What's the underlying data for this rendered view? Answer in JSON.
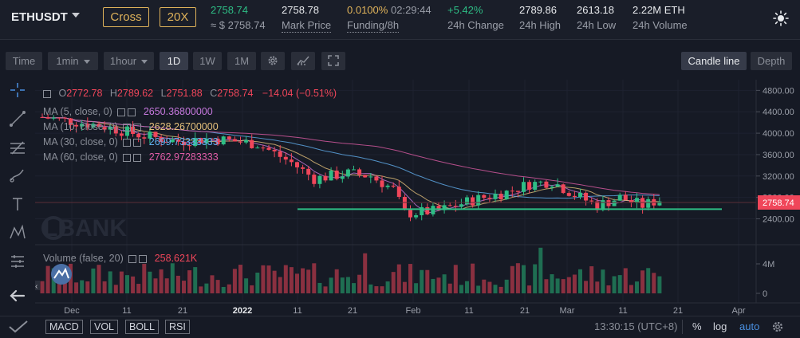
{
  "ticker": {
    "symbol": "ETHUSDT",
    "margin_mode": "Cross",
    "leverage": "20X",
    "last_price": "2758.74",
    "last_price_usd": "≈ $ 2758.74",
    "mark_price": "2758.78",
    "mark_price_label": "Mark Price",
    "funding_rate": "0.0100%",
    "funding_countdown": "02:29:44",
    "funding_label": "Funding/8h",
    "change_24h": "+5.42%",
    "change_label": "24h Change",
    "high_24h": "2789.86",
    "high_label": "24h High",
    "low_24h": "2613.18",
    "low_label": "24h Low",
    "volume_24h": "2.22M ETH",
    "volume_label": "24h Volume"
  },
  "toolbar": {
    "time_label": "Time",
    "min_label": "1min",
    "hour_label": "1hour",
    "day_label": "1D",
    "week_label": "1W",
    "month_label": "1M",
    "candle_line_label": "Candle line",
    "depth_label": "Depth"
  },
  "legend": {
    "ohlc": {
      "o_label": "O",
      "o": "2772.78",
      "h_label": "H",
      "h": "2789.62",
      "l_label": "L",
      "l": "2751.88",
      "c_label": "C",
      "c": "2758.74",
      "change": "−14.04 (−0.51%)"
    },
    "ma": [
      {
        "label": "MA (5, close, 0)",
        "value": "2650.36800000",
        "color": "#c678dd"
      },
      {
        "label": "MA (10, close, 0)",
        "value": "2628.26700000",
        "color": "#e5c07b"
      },
      {
        "label": "MA (30, close, 0)",
        "value": "2699.73333333",
        "color": "#61afef"
      },
      {
        "label": "MA (60, close, 0)",
        "value": "2762.97283333",
        "color": "#e05ca6"
      }
    ],
    "volume_label": "Volume (false, 20)",
    "volume_value": "258.621K"
  },
  "watermark": "LBANK",
  "chart_data": {
    "type": "candlestick",
    "y_ticks": [
      "4800.00",
      "4400.00",
      "4000.00",
      "3600.00",
      "3200.00",
      "2800.00",
      "2400.00"
    ],
    "y_range": [
      2080,
      4880
    ],
    "last_price_tag": "2758.74",
    "volume_ticks": [
      "4M",
      "0"
    ],
    "x_ticks": [
      "Dec",
      "11",
      "21",
      "2022",
      "11",
      "21",
      "Feb",
      "11",
      "21",
      "Mar",
      "11",
      "21",
      "Apr"
    ],
    "support_line_price": 2580,
    "colors": {
      "up": "#2ebd85",
      "down": "#f0465a"
    }
  },
  "bottom": {
    "indicators": [
      "MACD",
      "VOL",
      "BOLL",
      "RSI"
    ],
    "clock": "13:30:15 (UTC+8)",
    "percent_label": "%",
    "log_label": "log",
    "auto_label": "auto"
  }
}
